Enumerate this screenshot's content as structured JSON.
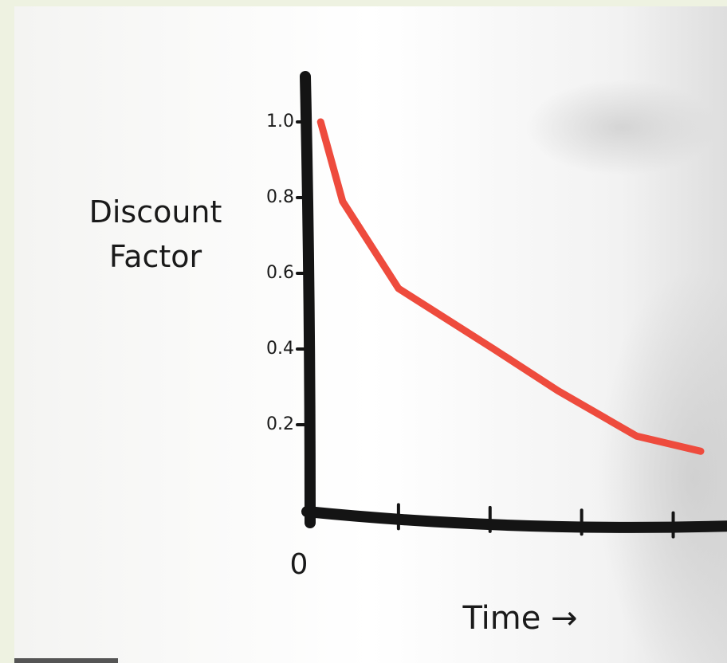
{
  "chart_data": {
    "type": "line",
    "xlabel": "Time →",
    "ylabel": "Discount Factor",
    "x": [
      0.15,
      0.39,
      1.0,
      2.04,
      2.74,
      3.6,
      4.3
    ],
    "series": [
      {
        "name": null,
        "color": "#ee4b3d",
        "values": [
          1.0,
          0.79,
          0.56,
          0.4,
          0.29,
          0.17,
          0.13
        ]
      }
    ],
    "xlim": [
      0,
      4.57
    ],
    "ylim": [
      0,
      1.12
    ],
    "xticks": [
      0,
      {
        "value": 1,
        "label": null
      },
      {
        "value": 2,
        "label": null
      },
      {
        "value": 3,
        "label": null
      },
      {
        "value": 4,
        "label": null
      }
    ],
    "yticks": [
      {
        "value": 1,
        "label": "1.0"
      },
      0.8,
      0.6,
      0.4,
      0.2
    ]
  }
}
